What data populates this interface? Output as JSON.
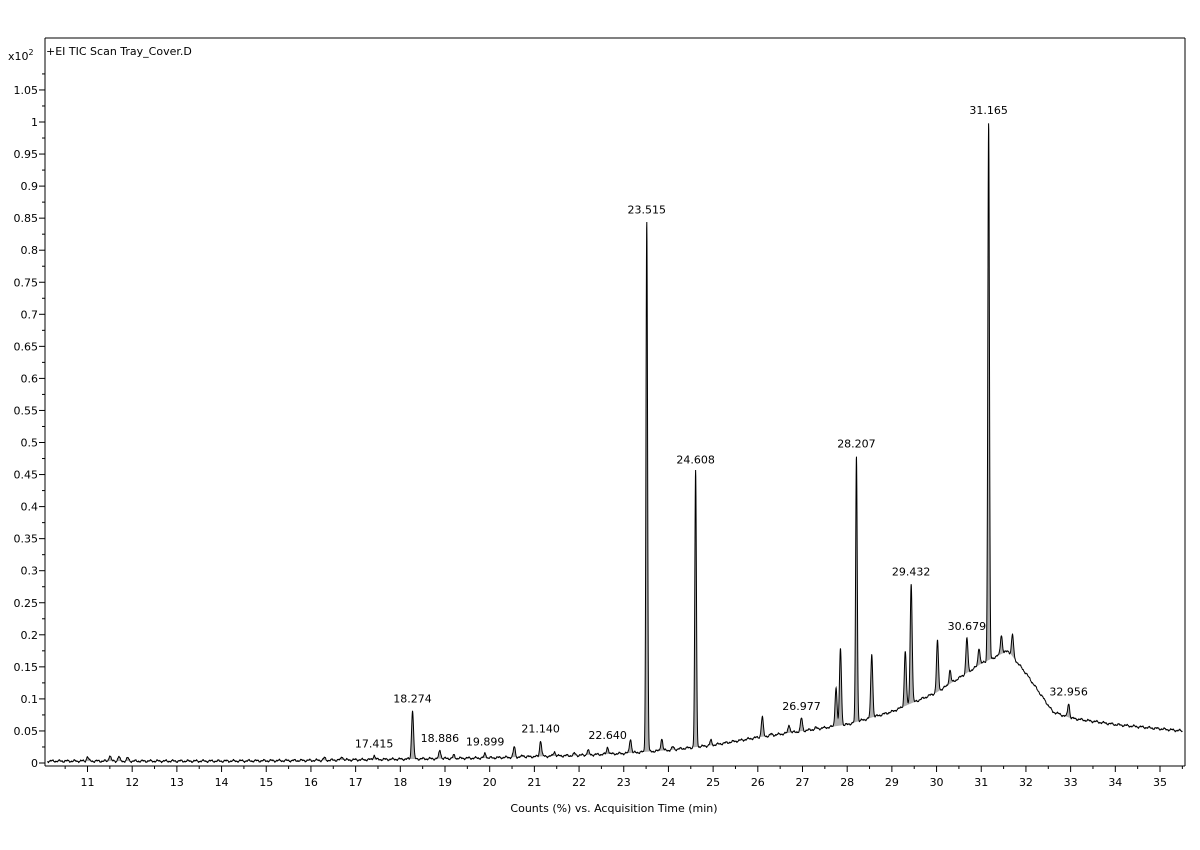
{
  "chart_data": {
    "type": "line",
    "title": "+EI TIC Scan Tray_Cover.D",
    "xlabel": "Counts (%) vs. Acquisition Time (min)",
    "ylabel": "",
    "y_multiplier": {
      "base": "x10",
      "exponent": "2"
    },
    "xlim": [
      10.1,
      35.5
    ],
    "ylim": [
      0,
      1.1
    ],
    "x_ticks": [
      11,
      12,
      13,
      14,
      15,
      16,
      17,
      18,
      19,
      20,
      21,
      22,
      23,
      24,
      25,
      26,
      27,
      28,
      29,
      30,
      31,
      32,
      33,
      34,
      35
    ],
    "y_ticks": [
      0,
      0.05,
      0.1,
      0.15,
      0.2,
      0.25,
      0.3,
      0.35,
      0.4,
      0.45,
      0.5,
      0.55,
      0.6,
      0.65,
      0.7,
      0.75,
      0.8,
      0.85,
      0.9,
      0.95,
      1,
      1.05
    ],
    "y_tick_labels": [
      "0",
      "0.05",
      "0.1",
      "0.15",
      "0.2",
      "0.25",
      "0.3",
      "0.35",
      "0.4",
      "0.45",
      "0.5",
      "0.55",
      "0.6",
      "0.65",
      "0.7",
      "0.75",
      "0.8",
      "0.85",
      "0.9",
      "0.95",
      "1",
      "1.05"
    ],
    "grid": false,
    "baseline": [
      [
        10.1,
        0.003
      ],
      [
        14.0,
        0.003
      ],
      [
        16.0,
        0.004
      ],
      [
        18.0,
        0.006
      ],
      [
        20.0,
        0.008
      ],
      [
        22.0,
        0.012
      ],
      [
        23.0,
        0.015
      ],
      [
        24.0,
        0.02
      ],
      [
        25.0,
        0.028
      ],
      [
        26.0,
        0.04
      ],
      [
        27.0,
        0.05
      ],
      [
        28.0,
        0.06
      ],
      [
        29.0,
        0.08
      ],
      [
        30.0,
        0.11
      ],
      [
        31.0,
        0.155
      ],
      [
        31.6,
        0.175
      ],
      [
        32.0,
        0.14
      ],
      [
        32.6,
        0.08
      ],
      [
        33.0,
        0.07
      ],
      [
        34.0,
        0.06
      ],
      [
        35.5,
        0.05
      ]
    ],
    "peaks": [
      {
        "x": 11.0,
        "y": 0.01
      },
      {
        "x": 11.5,
        "y": 0.012
      },
      {
        "x": 11.7,
        "y": 0.01
      },
      {
        "x": 11.9,
        "y": 0.008
      },
      {
        "x": 16.3,
        "y": 0.008
      },
      {
        "x": 16.7,
        "y": 0.01
      },
      {
        "x": 17.415,
        "y": 0.012,
        "label": "17.415"
      },
      {
        "x": 18.274,
        "y": 0.082,
        "label": "18.274"
      },
      {
        "x": 18.886,
        "y": 0.02,
        "label": "18.886"
      },
      {
        "x": 19.2,
        "y": 0.012
      },
      {
        "x": 19.899,
        "y": 0.015,
        "label": "19.899"
      },
      {
        "x": 20.55,
        "y": 0.025
      },
      {
        "x": 20.75,
        "y": 0.012
      },
      {
        "x": 21.14,
        "y": 0.035,
        "label": "21.140"
      },
      {
        "x": 21.45,
        "y": 0.018
      },
      {
        "x": 21.9,
        "y": 0.015
      },
      {
        "x": 22.2,
        "y": 0.02
      },
      {
        "x": 22.64,
        "y": 0.025,
        "label": "22.640"
      },
      {
        "x": 23.15,
        "y": 0.038
      },
      {
        "x": 23.515,
        "y": 0.845,
        "label": "23.515"
      },
      {
        "x": 23.85,
        "y": 0.038
      },
      {
        "x": 24.1,
        "y": 0.025
      },
      {
        "x": 24.4,
        "y": 0.02
      },
      {
        "x": 24.608,
        "y": 0.455,
        "label": "24.608"
      },
      {
        "x": 24.95,
        "y": 0.035
      },
      {
        "x": 25.3,
        "y": 0.03
      },
      {
        "x": 25.6,
        "y": 0.035
      },
      {
        "x": 26.1,
        "y": 0.072
      },
      {
        "x": 26.3,
        "y": 0.045
      },
      {
        "x": 26.7,
        "y": 0.06
      },
      {
        "x": 26.977,
        "y": 0.07,
        "label": "26.977"
      },
      {
        "x": 27.3,
        "y": 0.055
      },
      {
        "x": 27.75,
        "y": 0.118
      },
      {
        "x": 27.85,
        "y": 0.178
      },
      {
        "x": 28.207,
        "y": 0.48,
        "label": "28.207"
      },
      {
        "x": 28.55,
        "y": 0.17
      },
      {
        "x": 29.3,
        "y": 0.175
      },
      {
        "x": 29.432,
        "y": 0.28,
        "label": "29.432"
      },
      {
        "x": 30.02,
        "y": 0.19
      },
      {
        "x": 30.3,
        "y": 0.145
      },
      {
        "x": 30.679,
        "y": 0.195,
        "label": "30.679"
      },
      {
        "x": 30.95,
        "y": 0.18
      },
      {
        "x": 31.165,
        "y": 1.0,
        "label": "31.165"
      },
      {
        "x": 31.45,
        "y": 0.2
      },
      {
        "x": 31.7,
        "y": 0.2
      },
      {
        "x": 32.956,
        "y": 0.093,
        "label": "32.956"
      }
    ]
  }
}
